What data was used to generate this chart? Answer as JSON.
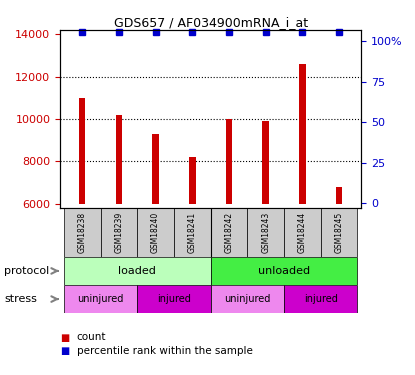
{
  "title": "GDS657 / AF034900mRNA_i_at",
  "samples": [
    "GSM18238",
    "GSM18239",
    "GSM18240",
    "GSM18241",
    "GSM18242",
    "GSM18243",
    "GSM18244",
    "GSM18245"
  ],
  "counts": [
    11000,
    10200,
    9300,
    8200,
    10000,
    9900,
    12600,
    6800
  ],
  "percentile_ranks": [
    99,
    99,
    99,
    99,
    99,
    99,
    99,
    99
  ],
  "bar_color": "#cc0000",
  "dot_color": "#0000cc",
  "ylim_left": [
    5800,
    14200
  ],
  "ylim_right": [
    -3,
    107
  ],
  "yticks_left": [
    6000,
    8000,
    10000,
    12000,
    14000
  ],
  "yticks_right": [
    0,
    25,
    50,
    75,
    100
  ],
  "ylabel_left_color": "#cc0000",
  "ylabel_right_color": "#0000cc",
  "protocol_labels": [
    "loaded",
    "unloaded"
  ],
  "protocol_colors": [
    "#bbffbb",
    "#44ee44"
  ],
  "stress_labels": [
    "uninjured",
    "injured",
    "uninjured",
    "injured"
  ],
  "stress_colors": [
    "#ee88ee",
    "#cc00cc",
    "#ee88ee",
    "#cc00cc"
  ],
  "legend_count_color": "#cc0000",
  "legend_pct_color": "#0000cc",
  "background_color": "#ffffff",
  "xticklabel_bg": "#cccccc"
}
